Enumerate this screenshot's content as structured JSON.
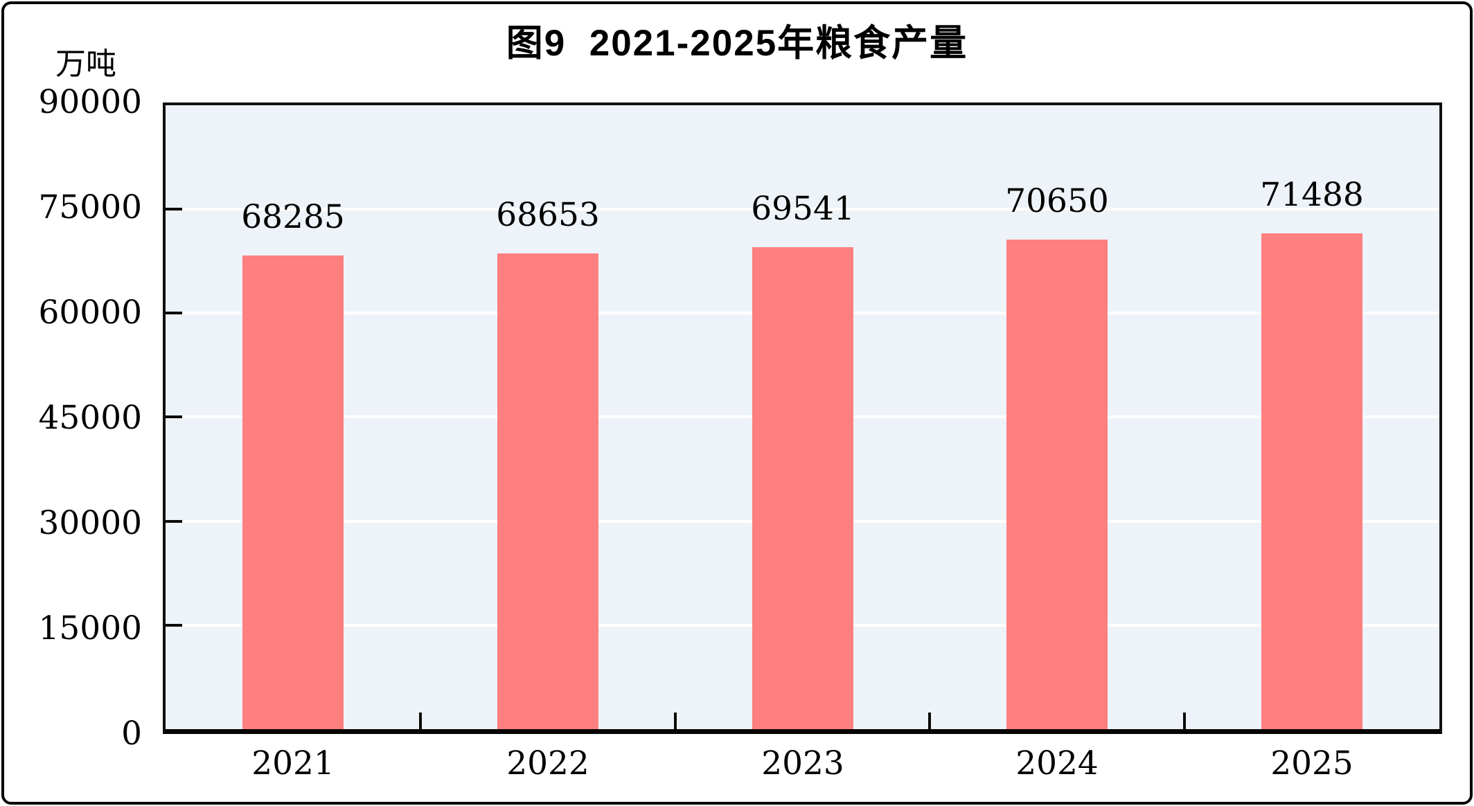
{
  "chart_data": {
    "type": "bar",
    "title": "图9  2021-2025年粮食产量",
    "unit_label": "万吨",
    "categories": [
      "2021",
      "2022",
      "2023",
      "2024",
      "2025"
    ],
    "values": [
      68285,
      68653,
      69541,
      70650,
      71488
    ],
    "data_labels": [
      "68285",
      "68653",
      "69541",
      "70650",
      "71488"
    ],
    "xlabel": "",
    "ylabel": "万吨",
    "ylim": [
      0,
      90000
    ],
    "yticks": [
      0,
      15000,
      30000,
      45000,
      60000,
      75000,
      90000
    ],
    "ytick_labels": [
      "0",
      "15000",
      "30000",
      "45000",
      "60000",
      "75000",
      "90000"
    ],
    "grid": true,
    "legend": "none",
    "colors": {
      "bar_fill": "#fd7f7f",
      "plot_background": "#edf3f8",
      "gridline": "#ffffff",
      "axis": "#0a0a0a",
      "text": "#000000",
      "page_background": "#ffffff",
      "frame_border": "#000000"
    }
  }
}
